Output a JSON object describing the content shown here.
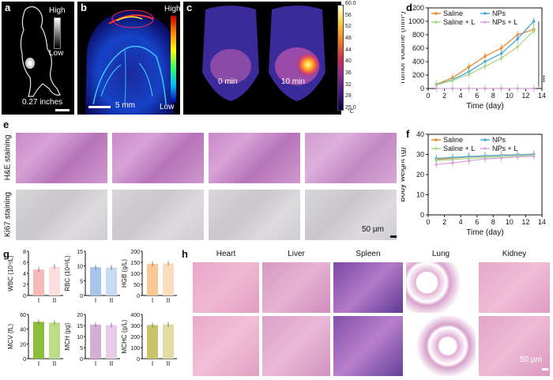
{
  "panels": {
    "a": {
      "letter": "a",
      "scale_text": "0.27 inches",
      "bar_high": "High",
      "bar_low": "Low"
    },
    "b": {
      "letter": "b",
      "bar_high": "High",
      "bar_low": "Low",
      "scale_text": "5 mm"
    },
    "c": {
      "letter": "c",
      "label_left": "0 min",
      "label_right": "10 min",
      "ticks": [
        "60.0",
        "56",
        "52",
        "48",
        "44",
        "40",
        "36",
        "32",
        "28",
        "25.0"
      ],
      "unit": "°C"
    },
    "e": {
      "letter": "e",
      "row1_label": "H&E staining",
      "row2_label": "Ki67 staining",
      "scale_text": "50 µm"
    },
    "h": {
      "letter": "h",
      "organs": [
        "Heart",
        "Liver",
        "Spleen",
        "Lung",
        "Kidney"
      ],
      "scale_text": "50 µm"
    }
  },
  "chart_data": [
    {
      "panel": "d",
      "type": "line",
      "xlabel": "Time (day)",
      "ylabel": "Tumor volume (mm³)",
      "xlim": [
        0,
        14
      ],
      "ylim": [
        0,
        1200
      ],
      "xticks": [
        0,
        2,
        4,
        6,
        8,
        10,
        12,
        14
      ],
      "yticks": [
        0,
        200,
        400,
        600,
        800,
        1000,
        1200
      ],
      "x": [
        1,
        3,
        5,
        7,
        9,
        11,
        13
      ],
      "series": [
        {
          "name": "Saline",
          "color": "#f08a2c",
          "values": [
            60,
            160,
            320,
            480,
            600,
            800,
            880
          ]
        },
        {
          "name": "NPs",
          "color": "#4aa8d8",
          "values": [
            55,
            130,
            250,
            400,
            520,
            740,
            1000
          ]
        },
        {
          "name": "Saline + L",
          "color": "#a8d88a",
          "values": [
            50,
            120,
            210,
            330,
            450,
            620,
            860
          ]
        },
        {
          "name": "NPs + L",
          "color": "#d8a8d8",
          "values": [
            0,
            0,
            0,
            0,
            0,
            0,
            0
          ]
        }
      ],
      "annotation": "***",
      "legend": "top-left"
    },
    {
      "panel": "f",
      "type": "line",
      "xlabel": "Time (day)",
      "ylabel": "Body weight (g)",
      "xlim": [
        0,
        14
      ],
      "ylim": [
        0,
        40
      ],
      "xticks": [
        0,
        2,
        4,
        6,
        8,
        10,
        12,
        14
      ],
      "yticks": [
        0,
        10,
        20,
        30,
        40
      ],
      "x": [
        1,
        3,
        5,
        7,
        9,
        11,
        13
      ],
      "series": [
        {
          "name": "Saline",
          "color": "#f08a2c",
          "values": [
            27.5,
            28.2,
            28.8,
            29.2,
            29.6,
            29.8,
            30.2
          ]
        },
        {
          "name": "NPs",
          "color": "#4aa8d8",
          "values": [
            28.0,
            28.5,
            29.0,
            29.3,
            29.6,
            29.9,
            30.0
          ]
        },
        {
          "name": "Saline + L",
          "color": "#a8d88a",
          "values": [
            27.0,
            27.5,
            28.0,
            28.5,
            29.0,
            29.3,
            29.5
          ]
        },
        {
          "name": "NPs + L",
          "color": "#d8a8d8",
          "values": [
            25.0,
            25.8,
            26.8,
            27.8,
            28.3,
            28.8,
            29.2
          ]
        }
      ],
      "legend": "top-left"
    },
    {
      "panel": "g",
      "type": "bar",
      "categories": [
        "I",
        "II"
      ],
      "charts": [
        {
          "ylabel": "WBC (10⁹/L)",
          "ylim": [
            0,
            8
          ],
          "yticks": [
            0,
            2,
            4,
            6,
            8
          ],
          "values": [
            4.7,
            5.2
          ],
          "colors": [
            "#f7b8b8",
            "#fbdede"
          ]
        },
        {
          "ylabel": "RBC (10¹²/L)",
          "ylim": [
            0,
            15
          ],
          "yticks": [
            0,
            5,
            10,
            15
          ],
          "values": [
            9.6,
            9.5
          ],
          "colors": [
            "#a8c4e8",
            "#c8daf2"
          ]
        },
        {
          "ylabel": "HGB (g/L)",
          "ylim": [
            0,
            200
          ],
          "yticks": [
            0,
            50,
            100,
            150,
            200
          ],
          "values": [
            143,
            145
          ],
          "colors": [
            "#f8c896",
            "#fbdcbc"
          ]
        },
        {
          "ylabel": "MCV (fL)",
          "ylim": [
            0,
            60
          ],
          "yticks": [
            0,
            20,
            40,
            60
          ],
          "values": [
            50,
            49
          ],
          "colors": [
            "#8cbe3c",
            "#bcdc88"
          ]
        },
        {
          "ylabel": "MCH (pg)",
          "ylim": [
            0,
            20
          ],
          "yticks": [
            0,
            5,
            10,
            15,
            20
          ],
          "values": [
            15.4,
            15.2
          ],
          "colors": [
            "#d4aed4",
            "#e6cce6"
          ]
        },
        {
          "ylabel": "MCHC (g/L)",
          "ylim": [
            0,
            400
          ],
          "yticks": [
            0,
            100,
            200,
            300,
            400
          ],
          "values": [
            305,
            310
          ],
          "colors": [
            "#c8c46c",
            "#e0dca4"
          ]
        }
      ]
    }
  ]
}
